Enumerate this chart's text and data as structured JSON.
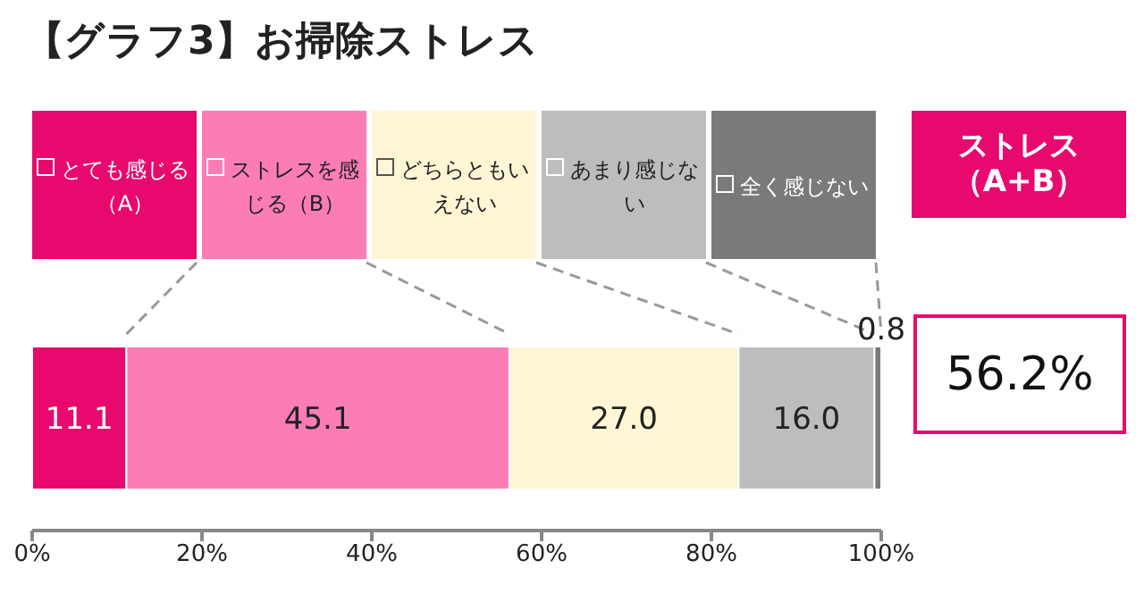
{
  "chart_data": {
    "type": "bar",
    "orientation": "horizontal",
    "stacked": true,
    "title": "【グラフ3】お掃除ストレス",
    "categories": [
      null
    ],
    "series": [
      {
        "name": "とても感じる（A）",
        "color": "#e8096e",
        "values": [
          11.1
        ],
        "value_labels": [
          "11.1"
        ]
      },
      {
        "name": "ストレスを感じる（B）",
        "color": "#fc7db6",
        "values": [
          45.1
        ],
        "value_labels": [
          "45.1"
        ]
      },
      {
        "name": "どちらともいえない",
        "color": "#fff6d5",
        "values": [
          27.0
        ],
        "value_labels": [
          "27.0"
        ]
      },
      {
        "name": "あまり感じない",
        "color": "#bdbdbd",
        "values": [
          16.0
        ],
        "value_labels": [
          "16.0"
        ]
      },
      {
        "name": "全く感じない",
        "color": "#7a7a7a",
        "values": [
          0.8
        ],
        "value_labels": [
          "0.8"
        ]
      }
    ],
    "xlim": [
      0,
      100
    ],
    "xticks": [
      {
        "value": 0,
        "label": "0%"
      },
      {
        "value": 20,
        "label": "20%"
      },
      {
        "value": 40,
        "label": "40%"
      },
      {
        "value": 60,
        "label": "60%"
      },
      {
        "value": 80,
        "label": "80%"
      },
      {
        "value": 100,
        "label": "100%"
      }
    ],
    "grid": false,
    "legend": "top",
    "tick_labels": "x",
    "annotations": [
      "ストレス（A+B）",
      "56.2%"
    ]
  }
}
